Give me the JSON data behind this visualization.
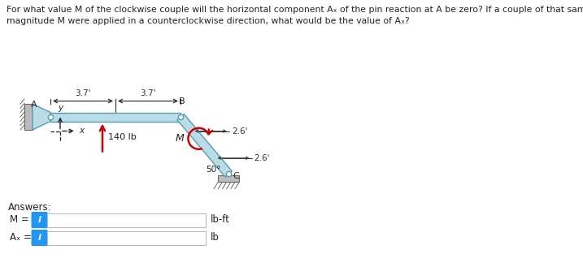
{
  "title_line1": "For what value M of the clockwise couple will the horizontal component Aₓ of the pin reaction at A be zero? If a couple of that same",
  "title_line2": "magnitude M were applied in a counterclockwise direction, what would be the value of Aₓ?",
  "title_fontsize": 7.8,
  "bg_color": "#ffffff",
  "beam_color": "#b8dde8",
  "beam_stroke": "#5a9ab0",
  "link_color": "#b8dde8",
  "link_stroke": "#5a9ab0",
  "arrow_color": "#cc0000",
  "moment_color": "#cc0000",
  "text_color": "#444444",
  "dark_color": "#222222",
  "dim_color": "#333333",
  "answers_label": "Answers:",
  "M_label": "M =",
  "Ax_label": "Aₓ =",
  "M_unit": "lb-ft",
  "Ax_unit": "lb",
  "info_box_color": "#2196F3",
  "input_box_color": "#ffffff",
  "input_box_border": "#bbbbbb",
  "dim1": "3.7'",
  "dim2": "3.7'",
  "dim3": "2.6'",
  "dim4": "2.6'",
  "load_label": "140 lb",
  "angle_label": "50°",
  "point_A": "A",
  "point_B": "B",
  "point_C": "C",
  "moment_label": "M",
  "axis_y": "y",
  "axis_x": "x",
  "wall_color": "#bbbbbb",
  "wall_stroke": "#666666",
  "ground_color": "#bbbbbb",
  "ground_stroke": "#666666"
}
